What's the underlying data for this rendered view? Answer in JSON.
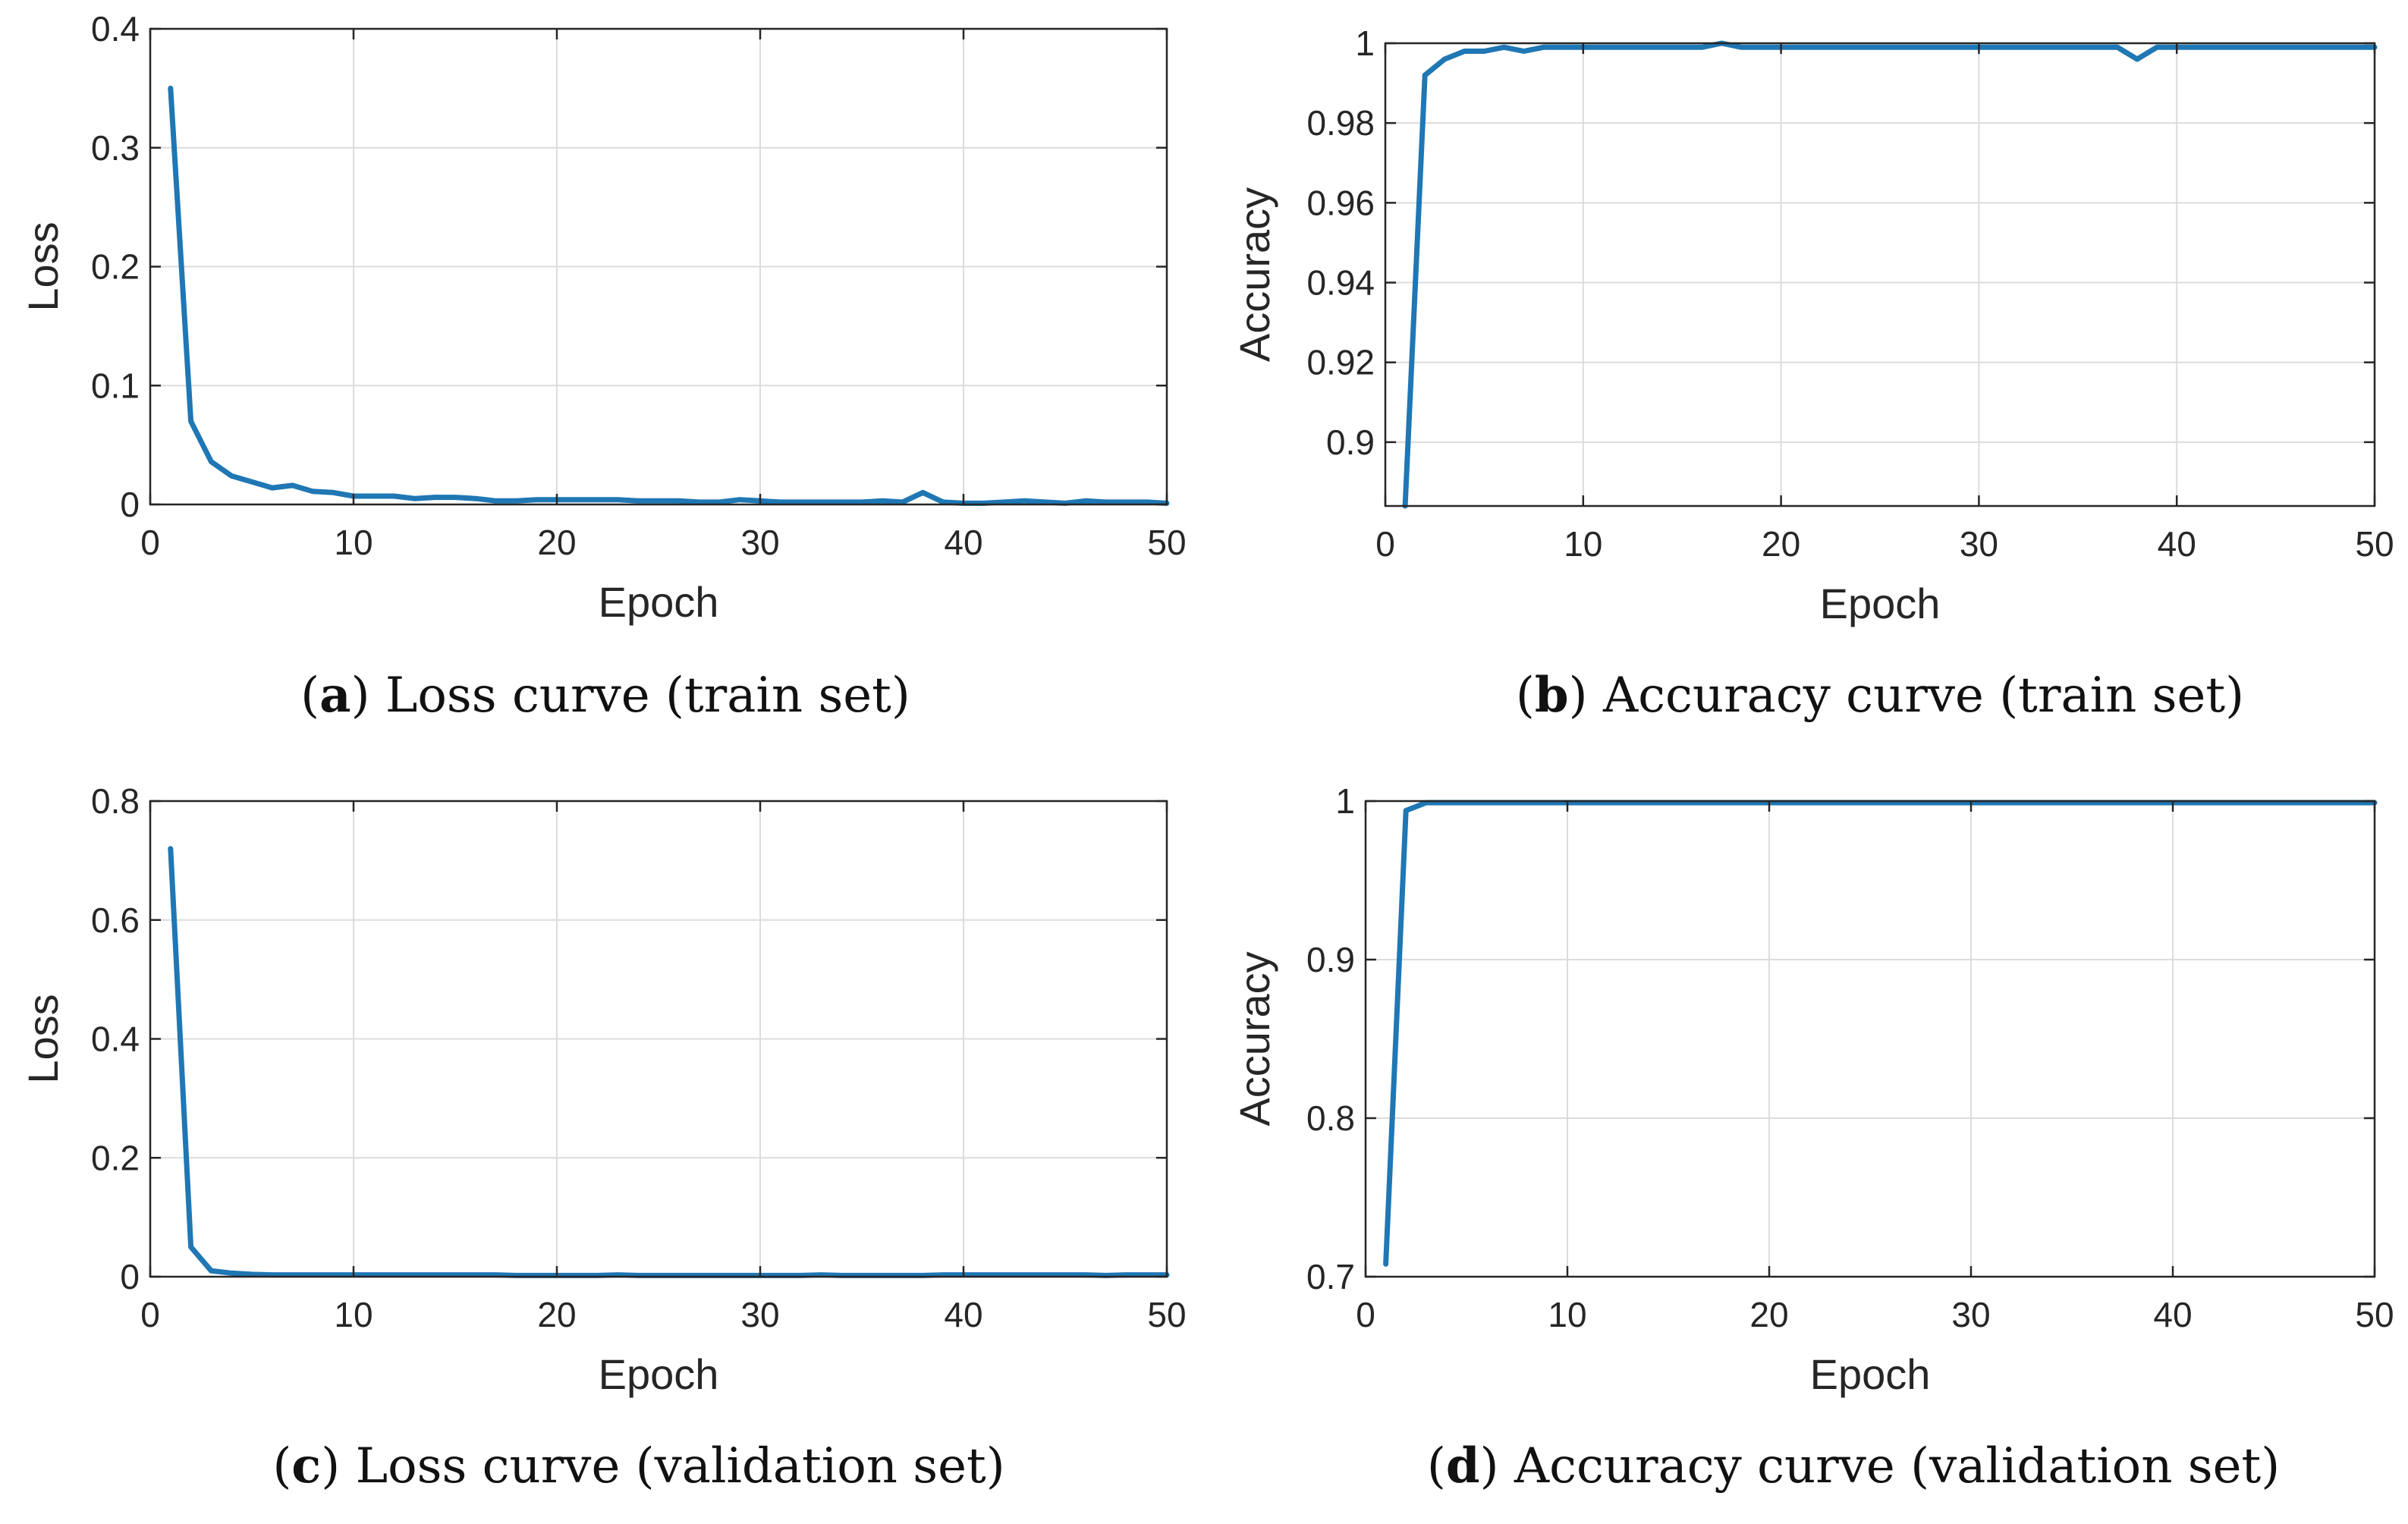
{
  "colors": {
    "line": "#1f77b4",
    "grid": "#dcdcdc",
    "axis": "#262626",
    "text": "#262626"
  },
  "chart_data": [
    {
      "type": "line",
      "subfigure": "a",
      "caption": "Loss curve (train set)",
      "xlabel": "Epoch",
      "ylabel": "Loss",
      "xlim": [
        0,
        50
      ],
      "ylim": [
        0,
        0.4
      ],
      "xticks": [
        0,
        10,
        20,
        30,
        40,
        50
      ],
      "yticks": [
        0,
        0.1,
        0.2,
        0.3,
        0.4
      ],
      "grid": true,
      "series": [
        {
          "name": "Loss",
          "x": [
            1,
            2,
            3,
            4,
            5,
            6,
            7,
            8,
            9,
            10,
            11,
            12,
            13,
            14,
            15,
            16,
            17,
            18,
            19,
            20,
            21,
            22,
            23,
            24,
            25,
            26,
            27,
            28,
            29,
            30,
            31,
            32,
            33,
            34,
            35,
            36,
            37,
            38,
            39,
            40,
            41,
            42,
            43,
            44,
            45,
            46,
            47,
            48,
            49,
            50
          ],
          "values": [
            0.35,
            0.07,
            0.036,
            0.024,
            0.019,
            0.014,
            0.016,
            0.011,
            0.01,
            0.007,
            0.007,
            0.007,
            0.005,
            0.006,
            0.006,
            0.005,
            0.003,
            0.003,
            0.004,
            0.004,
            0.004,
            0.004,
            0.004,
            0.003,
            0.003,
            0.003,
            0.002,
            0.002,
            0.004,
            0.003,
            0.002,
            0.002,
            0.002,
            0.002,
            0.002,
            0.003,
            0.002,
            0.01,
            0.002,
            0.001,
            0.001,
            0.002,
            0.003,
            0.002,
            0.001,
            0.003,
            0.002,
            0.002,
            0.002,
            0.001
          ]
        }
      ]
    },
    {
      "type": "line",
      "subfigure": "b",
      "caption": "Accuracy curve (train set)",
      "xlabel": "Epoch",
      "ylabel": "Accuracy",
      "xlim": [
        0,
        50
      ],
      "ylim": [
        0.884,
        1
      ],
      "xticks": [
        0,
        10,
        20,
        30,
        40,
        50
      ],
      "yticks": [
        0.9,
        0.92,
        0.94,
        0.96,
        0.98,
        1
      ],
      "ytick_labels": [
        "0.9",
        "0.92",
        "0.94",
        "0.96",
        "0.98",
        "1"
      ],
      "grid": true,
      "series": [
        {
          "name": "Accuracy",
          "x": [
            1,
            2,
            3,
            4,
            5,
            6,
            7,
            8,
            9,
            10,
            11,
            12,
            13,
            14,
            15,
            16,
            17,
            18,
            19,
            20,
            21,
            22,
            23,
            24,
            25,
            26,
            27,
            28,
            29,
            30,
            31,
            32,
            33,
            34,
            35,
            36,
            37,
            38,
            39,
            40,
            41,
            42,
            43,
            44,
            45,
            46,
            47,
            48,
            49,
            50
          ],
          "values": [
            0.884,
            0.992,
            0.996,
            0.998,
            0.998,
            0.999,
            0.998,
            0.999,
            0.999,
            0.999,
            0.999,
            0.999,
            0.999,
            0.999,
            0.999,
            0.999,
            1.0,
            0.999,
            0.999,
            0.999,
            0.999,
            0.999,
            0.999,
            0.999,
            0.999,
            0.999,
            0.999,
            0.999,
            0.999,
            0.999,
            0.999,
            0.999,
            0.999,
            0.999,
            0.999,
            0.999,
            0.999,
            0.996,
            0.999,
            0.999,
            0.999,
            0.999,
            0.999,
            0.999,
            0.999,
            0.999,
            0.999,
            0.999,
            0.999,
            0.999
          ]
        }
      ]
    },
    {
      "type": "line",
      "subfigure": "c",
      "caption": "Loss curve (validation set)",
      "xlabel": "Epoch",
      "ylabel": "Loss",
      "xlim": [
        0,
        50
      ],
      "ylim": [
        0,
        0.8
      ],
      "xticks": [
        0,
        10,
        20,
        30,
        40,
        50
      ],
      "yticks": [
        0,
        0.2,
        0.4,
        0.6,
        0.8
      ],
      "grid": true,
      "series": [
        {
          "name": "Loss",
          "x": [
            1,
            2,
            3,
            4,
            5,
            6,
            7,
            8,
            9,
            10,
            11,
            12,
            13,
            14,
            15,
            16,
            17,
            18,
            19,
            20,
            21,
            22,
            23,
            24,
            25,
            26,
            27,
            28,
            29,
            30,
            31,
            32,
            33,
            34,
            35,
            36,
            37,
            38,
            39,
            40,
            41,
            42,
            43,
            44,
            45,
            46,
            47,
            48,
            49,
            50
          ],
          "values": [
            0.72,
            0.05,
            0.01,
            0.006,
            0.004,
            0.003,
            0.003,
            0.003,
            0.003,
            0.003,
            0.003,
            0.003,
            0.003,
            0.003,
            0.003,
            0.003,
            0.003,
            0.002,
            0.002,
            0.002,
            0.002,
            0.002,
            0.003,
            0.002,
            0.002,
            0.002,
            0.002,
            0.002,
            0.002,
            0.002,
            0.002,
            0.002,
            0.003,
            0.002,
            0.002,
            0.002,
            0.002,
            0.002,
            0.003,
            0.003,
            0.003,
            0.003,
            0.003,
            0.003,
            0.003,
            0.003,
            0.002,
            0.003,
            0.003,
            0.003
          ]
        }
      ]
    },
    {
      "type": "line",
      "subfigure": "d",
      "caption": "Accuracy curve (validation set)",
      "xlabel": "Epoch",
      "ylabel": "Accuracy",
      "xlim": [
        0,
        50
      ],
      "ylim": [
        0.7,
        1
      ],
      "xticks": [
        0,
        10,
        20,
        30,
        40,
        50
      ],
      "yticks": [
        0.7,
        0.8,
        0.9,
        1
      ],
      "ytick_labels": [
        "0.7",
        "0.8",
        "0.9",
        "1"
      ],
      "grid": true,
      "series": [
        {
          "name": "Accuracy",
          "x": [
            1,
            2,
            3,
            4,
            5,
            6,
            7,
            8,
            9,
            10,
            11,
            12,
            13,
            14,
            15,
            16,
            17,
            18,
            19,
            20,
            21,
            22,
            23,
            24,
            25,
            26,
            27,
            28,
            29,
            30,
            31,
            32,
            33,
            34,
            35,
            36,
            37,
            38,
            39,
            40,
            41,
            42,
            43,
            44,
            45,
            46,
            47,
            48,
            49,
            50
          ],
          "values": [
            0.708,
            0.994,
            0.999,
            0.999,
            0.999,
            0.999,
            0.999,
            0.999,
            0.999,
            0.999,
            0.999,
            0.999,
            0.999,
            0.999,
            0.999,
            0.999,
            0.999,
            0.999,
            0.999,
            0.999,
            0.999,
            0.999,
            0.999,
            0.999,
            0.999,
            0.999,
            0.999,
            0.999,
            0.999,
            0.999,
            0.999,
            0.999,
            0.999,
            0.999,
            0.999,
            0.999,
            0.999,
            0.999,
            0.999,
            0.999,
            0.999,
            0.999,
            0.999,
            0.999,
            0.999,
            0.999,
            0.999,
            0.999,
            0.999,
            0.999
          ]
        }
      ]
    }
  ]
}
